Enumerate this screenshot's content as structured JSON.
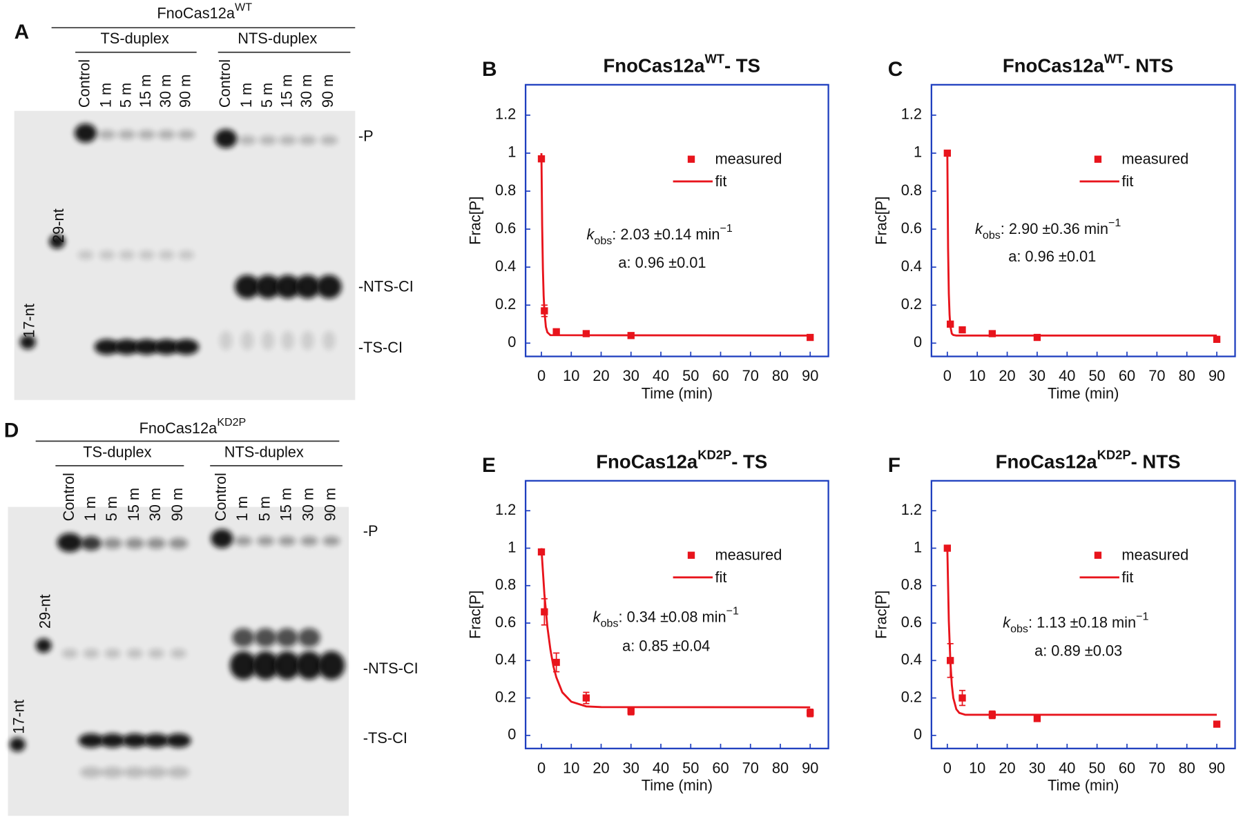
{
  "gels": [
    {
      "letter": "A",
      "enzyme": "FnoCas12a",
      "enzyme_sup": "WT",
      "groups": [
        {
          "name": "TS-duplex",
          "lanes": [
            "Control",
            "1 m",
            "5 m",
            "15 m",
            "30 m",
            "90 m"
          ]
        },
        {
          "name": "NTS-duplex",
          "lanes": [
            "Control",
            "1 m",
            "5 m",
            "15 m",
            "30 m",
            "90 m"
          ]
        }
      ],
      "markers": [
        "29-nt",
        "17-nt"
      ],
      "bands": [
        "-P",
        "-NTS-CI",
        "-TS-CI"
      ]
    },
    {
      "letter": "D",
      "enzyme": "FnoCas12a",
      "enzyme_sup": "KD2P",
      "groups": [
        {
          "name": "TS-duplex",
          "lanes": [
            "Control",
            "1 m",
            "5 m",
            "15 m",
            "30 m",
            "90 m"
          ]
        },
        {
          "name": "NTS-duplex",
          "lanes": [
            "Control",
            "1 m",
            "5 m",
            "15 m",
            "30 m",
            "90 m"
          ]
        }
      ],
      "markers": [
        "29-nt",
        "17-nt"
      ],
      "bands": [
        "-P",
        "-NTS-CI",
        "-TS-CI"
      ]
    }
  ],
  "chart_data": [
    {
      "type": "line",
      "panel": "B",
      "title": "FnoCas12a",
      "title_sup": "WT",
      "title_suffix": "- TS",
      "x_label": "Time (min)",
      "y_label": "Frac[P]",
      "xlim": [
        -5.3,
        96.1
      ],
      "ylim": [
        -0.07,
        1.36
      ],
      "xticks": [
        0,
        10,
        20,
        30,
        40,
        50,
        60,
        70,
        80,
        90
      ],
      "yticks": [
        0,
        0.2,
        0.4,
        0.6,
        0.8,
        1,
        1.2
      ],
      "legend": "upper right",
      "frame_color": "#1f3fbf",
      "annotation": {
        "k": "k",
        "k_sub": "obs",
        "k_text": ": 2.03  ±0.14 min",
        "k_sup": "−1",
        "a_text": "a: 0.96  ±0.01"
      },
      "series": [
        {
          "name": "measured",
          "kind": "marker",
          "color": "#e8141c",
          "x": [
            0,
            1,
            5,
            15,
            30,
            90
          ],
          "values": [
            0.97,
            0.17,
            0.06,
            0.05,
            0.04,
            0.03
          ],
          "errors": [
            0,
            0.03,
            0.01,
            0.01,
            0,
            0.01
          ]
        },
        {
          "name": "fit",
          "kind": "line",
          "color": "#e8141c",
          "x": [
            0,
            0.25,
            0.5,
            0.75,
            1,
            1.5,
            2,
            3,
            90
          ],
          "values": [
            1.0,
            0.62,
            0.39,
            0.25,
            0.17,
            0.085,
            0.057,
            0.042,
            0.04
          ]
        }
      ]
    },
    {
      "type": "line",
      "panel": "C",
      "title": "FnoCas12a",
      "title_sup": "WT",
      "title_suffix": "- NTS",
      "x_label": "Time (min)",
      "y_label": "Frac[P]",
      "xlim": [
        -5.3,
        96.1
      ],
      "ylim": [
        -0.07,
        1.36
      ],
      "xticks": [
        0,
        10,
        20,
        30,
        40,
        50,
        60,
        70,
        80,
        90
      ],
      "yticks": [
        0,
        0.2,
        0.4,
        0.6,
        0.8,
        1,
        1.2
      ],
      "legend": "upper right",
      "frame_color": "#1f3fbf",
      "annotation": {
        "k": "k",
        "k_sub": "obs",
        "k_text": ": 2.90  ±0.36 min",
        "k_sup": "−1",
        "a_text": "a: 0.96  ±0.01"
      },
      "series": [
        {
          "name": "measured",
          "kind": "marker",
          "color": "#e8141c",
          "x": [
            0,
            1,
            5,
            15,
            30,
            90
          ],
          "values": [
            1.0,
            0.1,
            0.07,
            0.05,
            0.03,
            0.02
          ],
          "errors": [
            0,
            0.01,
            0.01,
            0.01,
            0.01,
            0.01
          ]
        },
        {
          "name": "fit",
          "kind": "line",
          "color": "#e8141c",
          "x": [
            0,
            0.25,
            0.5,
            0.75,
            1,
            1.5,
            2,
            3,
            90
          ],
          "values": [
            1.0,
            0.5,
            0.26,
            0.15,
            0.09,
            0.05,
            0.043,
            0.04,
            0.04
          ]
        }
      ]
    },
    {
      "type": "line",
      "panel": "E",
      "title": "FnoCas12a",
      "title_sup": "KD2P",
      "title_suffix": "- TS",
      "x_label": "Time (min)",
      "y_label": "Frac[P]",
      "xlim": [
        -5.3,
        96.1
      ],
      "ylim": [
        -0.07,
        1.36
      ],
      "xticks": [
        0,
        10,
        20,
        30,
        40,
        50,
        60,
        70,
        80,
        90
      ],
      "yticks": [
        0,
        0.2,
        0.4,
        0.6,
        0.8,
        1,
        1.2
      ],
      "legend": "upper right",
      "frame_color": "#1f3fbf",
      "annotation": {
        "k": "k",
        "k_sub": "obs",
        "k_text": ": 0.34  ±0.08 min",
        "k_sup": "−1",
        "a_text": "a: 0.85  ±0.04"
      },
      "series": [
        {
          "name": "measured",
          "kind": "marker",
          "color": "#e8141c",
          "x": [
            0,
            1,
            5,
            15,
            30,
            90
          ],
          "values": [
            0.98,
            0.66,
            0.39,
            0.2,
            0.13,
            0.12
          ],
          "errors": [
            0,
            0.07,
            0.05,
            0.03,
            0.02,
            0.02
          ]
        },
        {
          "name": "fit",
          "kind": "line",
          "color": "#e8141c",
          "x": [
            0,
            1,
            2,
            3,
            4,
            5,
            7,
            10,
            15,
            20,
            90
          ],
          "values": [
            1.0,
            0.755,
            0.58,
            0.46,
            0.37,
            0.31,
            0.23,
            0.18,
            0.155,
            0.151,
            0.15
          ]
        }
      ]
    },
    {
      "type": "line",
      "panel": "F",
      "title": "FnoCas12a",
      "title_sup": "KD2P",
      "title_suffix": "- NTS",
      "x_label": "Time (min)",
      "y_label": "Frac[P]",
      "xlim": [
        -5.3,
        96.1
      ],
      "ylim": [
        -0.07,
        1.36
      ],
      "xticks": [
        0,
        10,
        20,
        30,
        40,
        50,
        60,
        70,
        80,
        90
      ],
      "yticks": [
        0,
        0.2,
        0.4,
        0.6,
        0.8,
        1,
        1.2
      ],
      "legend": "upper right",
      "frame_color": "#1f3fbf",
      "annotation": {
        "k": "k",
        "k_sub": "obs",
        "k_text": ": 1.13  ±0.18 min",
        "k_sup": "−1",
        "a_text": "a: 0.89  ±0.03"
      },
      "series": [
        {
          "name": "measured",
          "kind": "marker",
          "color": "#e8141c",
          "x": [
            0,
            1,
            5,
            15,
            30,
            90
          ],
          "values": [
            1.0,
            0.4,
            0.2,
            0.11,
            0.09,
            0.06
          ],
          "errors": [
            0,
            0.09,
            0.04,
            0.02,
            0.01,
            0
          ]
        },
        {
          "name": "fit",
          "kind": "line",
          "color": "#e8141c",
          "x": [
            0,
            0.5,
            1,
            1.5,
            2,
            3,
            4,
            6,
            90
          ],
          "values": [
            1.0,
            0.61,
            0.4,
            0.27,
            0.2,
            0.14,
            0.12,
            0.11,
            0.11
          ]
        }
      ]
    }
  ]
}
